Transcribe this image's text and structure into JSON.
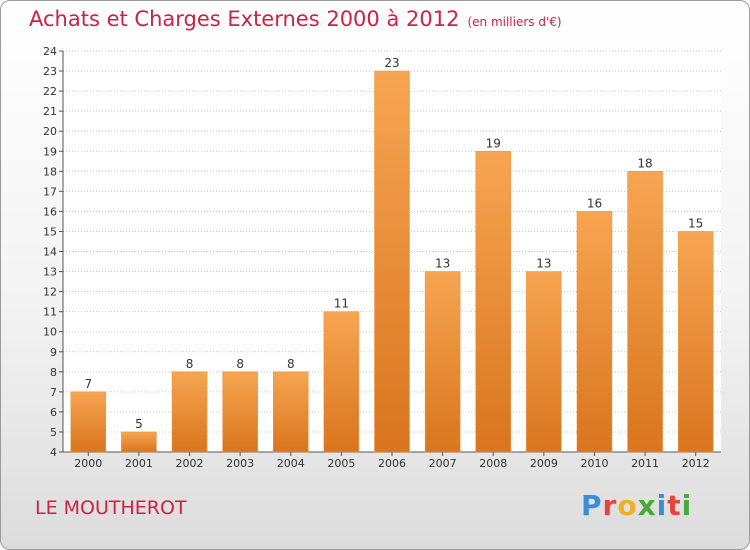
{
  "chart_data": {
    "type": "bar",
    "title": "Achats et Charges Externes 2000 à 2012",
    "subtitle": "(en milliers d'€)",
    "categories": [
      "2000",
      "2001",
      "2002",
      "2003",
      "2004",
      "2005",
      "2006",
      "2007",
      "2008",
      "2009",
      "2010",
      "2011",
      "2012"
    ],
    "values": [
      7,
      5,
      8,
      8,
      8,
      11,
      23,
      13,
      19,
      13,
      16,
      18,
      15
    ],
    "ylim": [
      4,
      24
    ],
    "yticks": [
      4,
      5,
      6,
      7,
      8,
      9,
      10,
      11,
      12,
      13,
      14,
      15,
      16,
      17,
      18,
      19,
      20,
      21,
      22,
      23,
      24
    ],
    "grid": true,
    "bar_color_top": "#f7a552",
    "bar_color_bottom": "#d9751e",
    "title_color": "#cc2244"
  },
  "footer": {
    "commune": "LE MOUTHEROT",
    "logo_letters": [
      "P",
      "r",
      "o",
      "x",
      "i",
      "t",
      "i"
    ],
    "logo_colors": [
      "#3a8fd4",
      "#e8443a",
      "#f0b020",
      "#4aa83a",
      "#3a8fd4",
      "#e8443a",
      "#4aa83a"
    ]
  }
}
